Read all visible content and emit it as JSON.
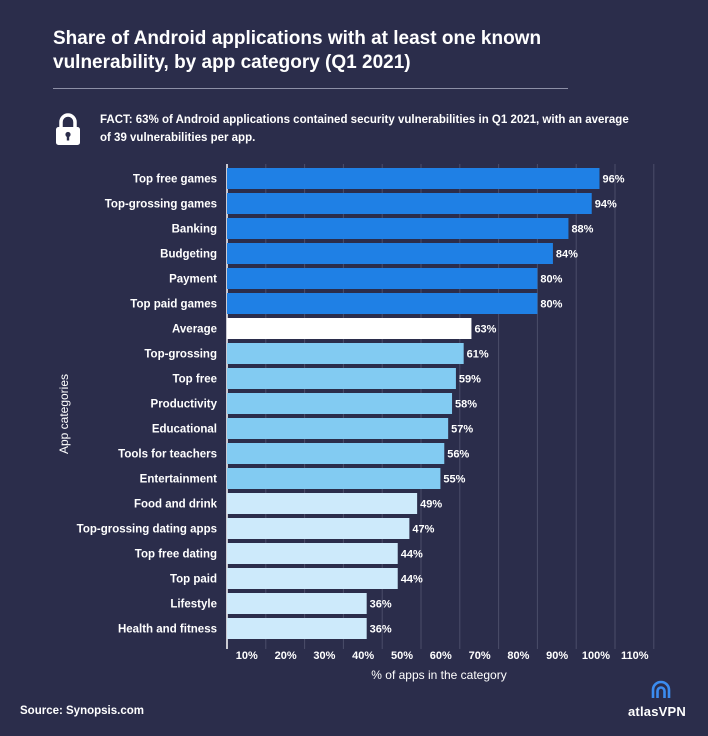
{
  "title": "Share of Android applications with at least one known vulnerability, by app category  (Q1 2021)",
  "fact": "FACT: 63% of Android applications contained security vulnerabilities in Q1 2021, with an average of 39 vulnerabilities per app.",
  "source": "Source: Synopsis.com",
  "brand": "atlasVPN",
  "icons": {
    "fact": "lock-icon",
    "brand": "atlasvpn-logo-icon"
  },
  "colors": {
    "background": "#2b2d4b",
    "dark_blue": "#1f80e5",
    "average": "#ffffff",
    "mid_blue": "#82cbf2",
    "light_blue": "#cdeafb",
    "grid": "#4b4d69"
  },
  "chart_data": {
    "type": "bar",
    "orientation": "horizontal",
    "title": "Share of Android applications with at least one known vulnerability, by app category  (Q1 2021)",
    "xlabel": "% of apps in the category",
    "ylabel": "App categories",
    "xlim": [
      0,
      110
    ],
    "x_ticks": [
      "10%",
      "20%",
      "30%",
      "40%",
      "50%",
      "60%",
      "70%",
      "80%",
      "90%",
      "100%",
      "110%"
    ],
    "grid": true,
    "categories": [
      "Top free games",
      "Top-grossing games",
      "Banking",
      "Budgeting",
      "Payment",
      "Top paid games",
      "Average",
      "Top-grossing",
      "Top free",
      "Productivity",
      "Educational",
      "Tools for teachers",
      "Entertainment",
      "Food and drink",
      "Top-grossing dating apps",
      "Top free dating",
      "Top paid",
      "Lifestyle",
      "Health and fitness"
    ],
    "values": [
      96,
      94,
      88,
      84,
      80,
      80,
      63,
      61,
      59,
      58,
      57,
      56,
      55,
      49,
      47,
      44,
      44,
      36,
      36
    ],
    "value_labels": [
      "96%",
      "94%",
      "88%",
      "84%",
      "80%",
      "80%",
      "63%",
      "61%",
      "59%",
      "58%",
      "57%",
      "56%",
      "55%",
      "49%",
      "47%",
      "44%",
      "44%",
      "36%",
      "36%"
    ],
    "bar_colors": [
      "#1f80e5",
      "#1f80e5",
      "#1f80e5",
      "#1f80e5",
      "#1f80e5",
      "#1f80e5",
      "#ffffff",
      "#82cbf2",
      "#82cbf2",
      "#82cbf2",
      "#82cbf2",
      "#82cbf2",
      "#82cbf2",
      "#cdeafb",
      "#cdeafb",
      "#cdeafb",
      "#cdeafb",
      "#cdeafb",
      "#cdeafb"
    ]
  }
}
